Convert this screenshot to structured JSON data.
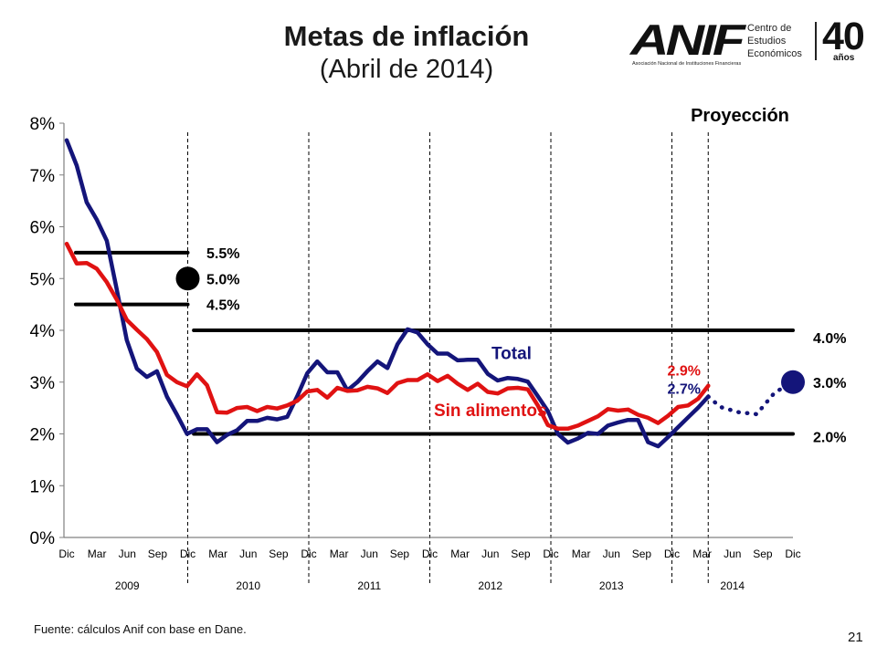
{
  "header": {
    "title": "Metas de inflación",
    "subtitle": "(Abril de 2014)"
  },
  "logo": {
    "brand": "ANIF",
    "brand_sub": "Asociación Nacional de Instituciones Financieras",
    "centro_line1": "Centro de",
    "centro_line2": "Estudios",
    "centro_line3": "Económicos",
    "anniversary": "40",
    "anniversary_sub": "años"
  },
  "footer": {
    "source": "Fuente: cálculos Anif con base en Dane.",
    "page_number": "21"
  },
  "colors": {
    "total": "#14157a",
    "sin_alimentos": "#e01212",
    "target": "#000000",
    "axis": "#808080"
  },
  "chart_data": {
    "type": "line",
    "ylim": [
      0,
      8
    ],
    "y_ticks": [
      "0%",
      "1%",
      "2%",
      "3%",
      "4%",
      "5%",
      "6%",
      "7%",
      "8%"
    ],
    "x_tick_labels": [
      "Dic",
      "Mar",
      "Jun",
      "Sep",
      "Dic",
      "Mar",
      "Jun",
      "Sep",
      "Dic",
      "Mar",
      "Jun",
      "Sep",
      "Dic",
      "Mar",
      "Jun",
      "Sep",
      "Dic",
      "Mar",
      "Jun",
      "Sep",
      "Dic",
      "Mar",
      "Jun",
      "Sep",
      "Dic"
    ],
    "year_labels": [
      {
        "label": "2009",
        "start": 0,
        "end": 4
      },
      {
        "label": "2010",
        "start": 4,
        "end": 8
      },
      {
        "label": "2011",
        "start": 8,
        "end": 12
      },
      {
        "label": "2012",
        "start": 12,
        "end": 16
      },
      {
        "label": "2013",
        "start": 16,
        "end": 20
      },
      {
        "label": "2014",
        "start": 20,
        "end": 24
      }
    ],
    "dividers": [
      4,
      8,
      12,
      16,
      20,
      21.2
    ],
    "series": [
      {
        "name": "Total",
        "key": "total",
        "values": [
          7.67,
          7.18,
          6.47,
          6.14,
          5.73,
          4.78,
          3.81,
          3.26,
          3.1,
          3.21,
          2.72,
          2.37,
          2.0,
          2.09,
          2.09,
          1.84,
          1.98,
          2.07,
          2.25,
          2.25,
          2.31,
          2.28,
          2.33,
          2.73,
          3.17,
          3.4,
          3.19,
          3.19,
          2.84,
          3.0,
          3.21,
          3.4,
          3.27,
          3.73,
          4.02,
          3.96,
          3.73,
          3.55,
          3.55,
          3.42,
          3.43,
          3.43,
          3.16,
          3.03,
          3.08,
          3.06,
          3.01,
          2.73,
          2.44,
          2.0,
          1.83,
          1.91,
          2.02,
          2.0,
          2.16,
          2.22,
          2.27,
          2.27,
          1.84,
          1.76,
          1.94,
          2.13,
          2.32,
          2.51,
          2.72
        ]
      },
      {
        "name": "Sin alimentos",
        "key": "sin_alimentos",
        "values": [
          5.67,
          5.29,
          5.3,
          5.19,
          4.93,
          4.59,
          4.2,
          4.01,
          3.83,
          3.58,
          3.14,
          3.0,
          2.92,
          3.15,
          2.94,
          2.42,
          2.41,
          2.5,
          2.52,
          2.44,
          2.52,
          2.49,
          2.55,
          2.64,
          2.82,
          2.85,
          2.7,
          2.89,
          2.83,
          2.84,
          2.91,
          2.88,
          2.79,
          2.98,
          3.04,
          3.04,
          3.15,
          3.02,
          3.12,
          2.97,
          2.85,
          2.97,
          2.81,
          2.78,
          2.88,
          2.89,
          2.86,
          2.55,
          2.17,
          2.1,
          2.1,
          2.16,
          2.25,
          2.34,
          2.48,
          2.45,
          2.47,
          2.37,
          2.31,
          2.21,
          2.35,
          2.52,
          2.55,
          2.68,
          2.93
        ]
      }
    ],
    "projection": {
      "label": "Proyección",
      "values": [
        [
          21.2,
          2.72
        ],
        [
          21.6,
          2.52
        ],
        [
          22.2,
          2.42
        ],
        [
          22.8,
          2.38
        ],
        [
          23.4,
          2.8
        ],
        [
          24,
          3.0
        ]
      ]
    },
    "targets": [
      {
        "x": [
          0.3,
          4
        ],
        "y": 5.5,
        "label": "5.5%"
      },
      {
        "x": [
          0.3,
          4
        ],
        "y": 4.5,
        "label": "4.5%"
      },
      {
        "x": [
          4.2,
          24
        ],
        "y": 4.0,
        "label": "4.0%"
      },
      {
        "x": [
          4.2,
          24
        ],
        "y": 2.0,
        "label": "2.0%"
      }
    ],
    "points": [
      {
        "x": 4,
        "y": 5.0,
        "label": "5.0%",
        "color": "#000000"
      },
      {
        "x": 24,
        "y": 3.0,
        "label": "3.0%",
        "color": "#14157a"
      }
    ],
    "annotations": [
      {
        "text": "Total",
        "key": "total",
        "x": 14.7,
        "y": 3.55
      },
      {
        "text": "Sin alimentos",
        "key": "sin_alimentos",
        "x": 14.0,
        "y": 2.45
      },
      {
        "text": "2.9%",
        "key": "sin_alimentos",
        "x": 20.4,
        "y": 3.23
      },
      {
        "text": "2.7%",
        "key": "total",
        "x": 20.4,
        "y": 2.88
      }
    ],
    "legend": "none",
    "grid": false
  }
}
